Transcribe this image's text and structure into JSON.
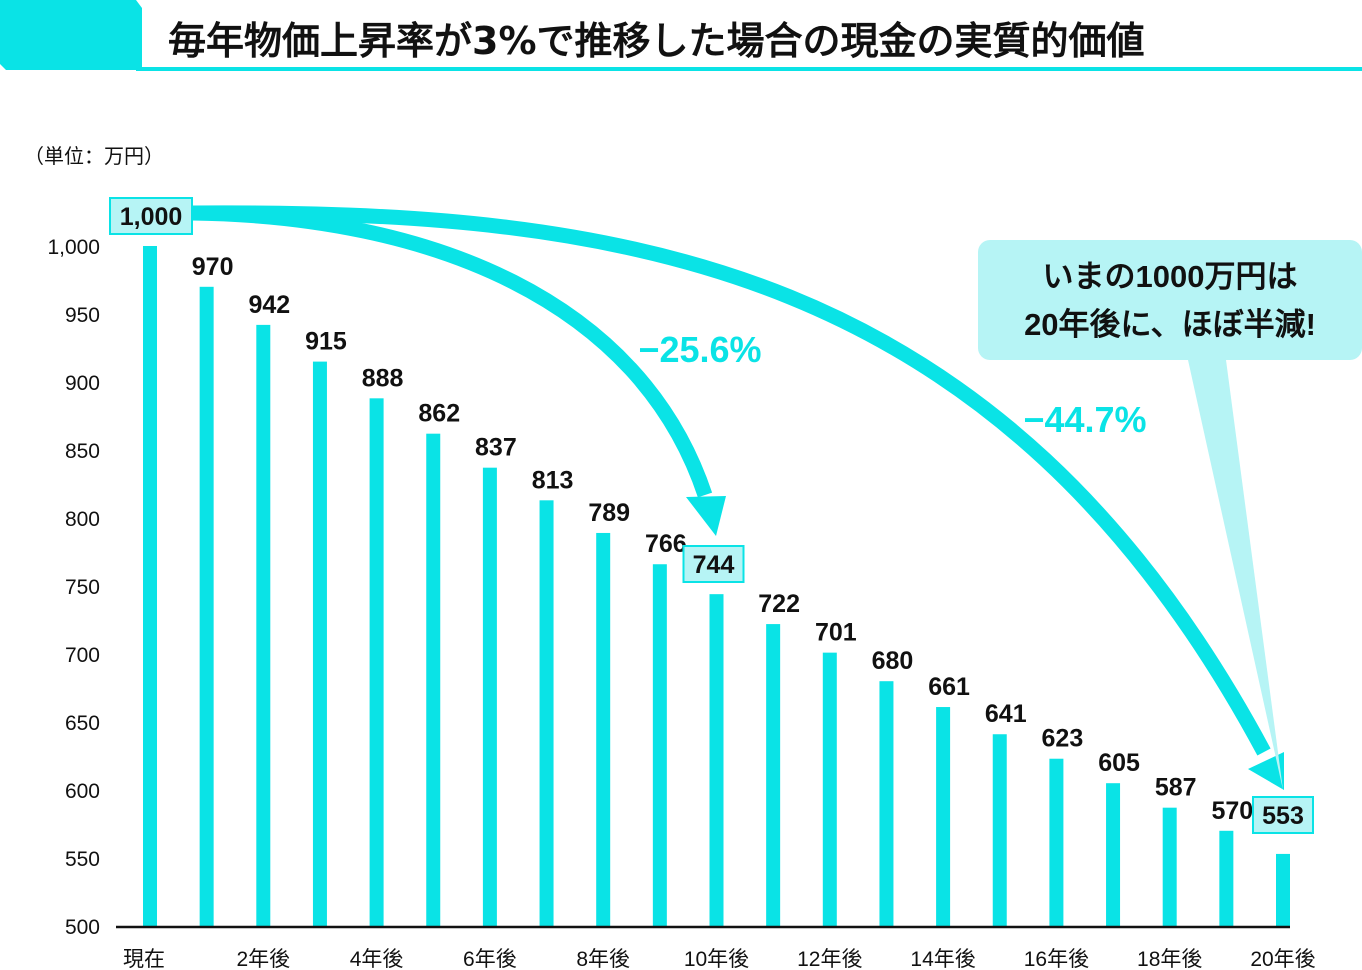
{
  "chart_data": {
    "type": "bar",
    "title": "毎年物価上昇率が3%で推移した場合の現金の実質的価値",
    "unit_label": "（単位：万円）",
    "xlabel": "",
    "ylabel": "",
    "ylim": [
      500,
      1000
    ],
    "yticks": [
      500,
      550,
      600,
      650,
      700,
      750,
      800,
      850,
      900,
      950,
      1000
    ],
    "ytick_labels": [
      "500",
      "550",
      "600",
      "650",
      "700",
      "750",
      "800",
      "850",
      "900",
      "950",
      "1,000"
    ],
    "categories": [
      "現在",
      "1年後",
      "2年後",
      "3年後",
      "4年後",
      "5年後",
      "6年後",
      "7年後",
      "8年後",
      "9年後",
      "10年後",
      "11年後",
      "12年後",
      "13年後",
      "14年後",
      "15年後",
      "16年後",
      "17年後",
      "18年後",
      "19年後",
      "20年後"
    ],
    "xtick_labels_shown": [
      "現在",
      "",
      "2年後",
      "",
      "4年後",
      "",
      "6年後",
      "",
      "8年後",
      "",
      "10年後",
      "",
      "12年後",
      "",
      "14年後",
      "",
      "16年後",
      "",
      "18年後",
      "",
      "20年後"
    ],
    "values": [
      1000,
      970,
      942,
      915,
      888,
      862,
      837,
      813,
      789,
      766,
      744,
      722,
      701,
      680,
      661,
      641,
      623,
      605,
      587,
      570,
      553
    ],
    "value_labels": [
      "1,000",
      "970",
      "942",
      "915",
      "888",
      "862",
      "837",
      "813",
      "789",
      "766",
      "744",
      "722",
      "701",
      "680",
      "661",
      "641",
      "623",
      "605",
      "587",
      "570",
      "553"
    ],
    "highlighted_indices": [
      0,
      10,
      20
    ],
    "grid": false,
    "legend": "none",
    "annotations": [
      {
        "from_index": 0,
        "to_index": 10,
        "label": "−25.6%"
      },
      {
        "from_index": 0,
        "to_index": 20,
        "label": "−44.7%"
      }
    ],
    "callout": {
      "lines": [
        "いまの1000万円は",
        "20年後に、ほぼ半減!"
      ],
      "points_to_index": 20
    },
    "colors": {
      "bar": "#0ae3e6",
      "arrow": "#0ae3e6",
      "highlight_box_fill": "#b6f4f5",
      "highlight_box_stroke": "#0ae3e6",
      "callout_fill": "#b6f4f5",
      "annotation_text": "#0ae3e6",
      "title_accent": "#0ae3e6",
      "axis": "#111111",
      "text": "#111111"
    }
  }
}
